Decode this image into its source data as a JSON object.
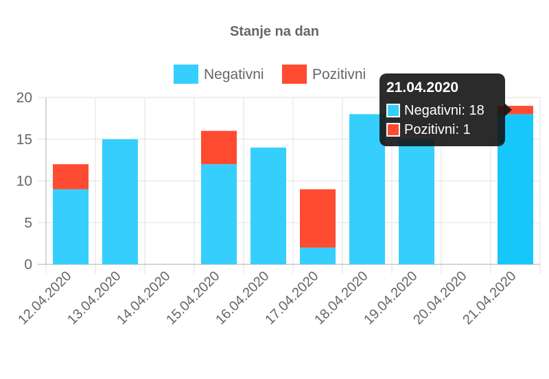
{
  "chart_data": {
    "type": "bar",
    "stacked": true,
    "title": "Stanje na dan",
    "categories": [
      "12.04.2020",
      "13.04.2020",
      "14.04.2020",
      "15.04.2020",
      "16.04.2020",
      "17.04.2020",
      "18.04.2020",
      "19.04.2020",
      "20.04.2020",
      "21.04.2020"
    ],
    "series": [
      {
        "name": "Negativni",
        "color": "#36cffd",
        "values": [
          9,
          15,
          0,
          12,
          14,
          2,
          18,
          15,
          0,
          18
        ]
      },
      {
        "name": "Pozitivni",
        "color": "#fe4b32",
        "values": [
          3,
          0,
          0,
          4,
          0,
          7,
          0,
          0,
          0,
          1
        ]
      }
    ],
    "ylim": [
      0,
      20
    ],
    "yticks": [
      0,
      5,
      10,
      15,
      20
    ],
    "grid": true,
    "legend_position": "top-center",
    "highlight_index": 9,
    "highlight_color": "#17c6fb"
  },
  "tooltip": {
    "title": "21.04.2020",
    "rows": [
      {
        "label": "Negativni: 18",
        "color": "#36cffd"
      },
      {
        "label": "Pozitivni: 1",
        "color": "#fe4b32"
      }
    ]
  }
}
